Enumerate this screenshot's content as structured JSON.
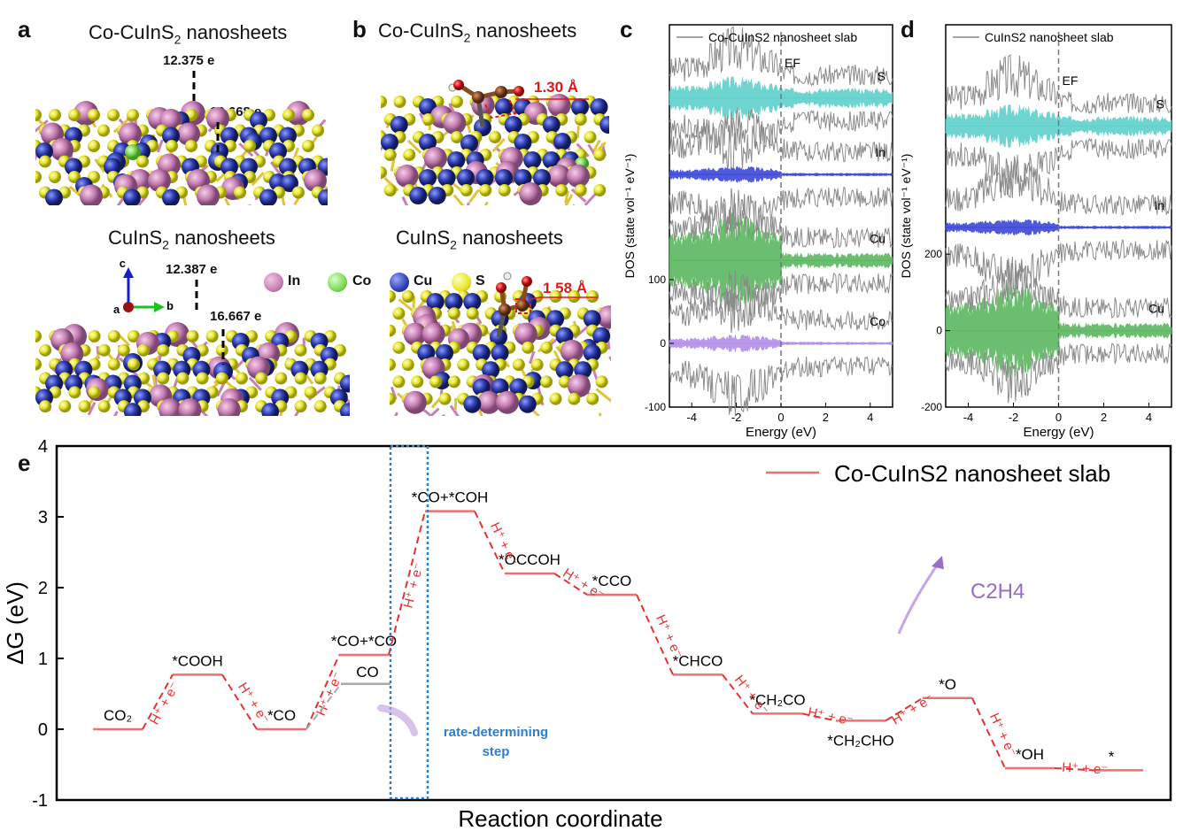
{
  "panels": {
    "a": {
      "label": "a",
      "top_title": "Co-CuInS",
      "top_title_sub": "2",
      "top_title_rest": " nanosheets",
      "top_charge1": "12.375 e",
      "top_charge2": "16.668 e",
      "bottom_title": "CuInS",
      "bottom_title_sub": "2",
      "bottom_title_rest": " nanosheets",
      "bottom_charge1": "12.387 e",
      "bottom_charge2": "16.667 e",
      "axes": {
        "c": "c",
        "a": "a",
        "b": "b"
      },
      "legend": [
        {
          "name": "In",
          "color": "#c77fb4"
        },
        {
          "name": "Co",
          "color": "#7ed957"
        },
        {
          "name": "Cu",
          "color": "#2f3fb0"
        },
        {
          "name": "S",
          "color": "#e7e52a"
        }
      ]
    },
    "b": {
      "label": "b",
      "top_title": "Co-CuInS",
      "top_title_sub": "2",
      "top_title_rest": " nanosheets",
      "top_bond": "1.30 Å",
      "bottom_title": "CuInS",
      "bottom_title_sub": "2",
      "bottom_title_rest": " nanosheets",
      "bottom_bond": "1.58 Å"
    },
    "c": {
      "label": "c",
      "legend": "Co-CuInS",
      "legend_sub": "2",
      "legend_rest": " nanosheet slab",
      "ef": "E",
      "ef_sub": "F"
    },
    "d": {
      "label": "d",
      "legend": "CuInS",
      "legend_sub": "2",
      "legend_rest": " nanosheet slab",
      "ef": "E",
      "ef_sub": "F"
    },
    "e": {
      "label": "e",
      "legend": "Co-CuInS",
      "legend_sub": "2",
      "legend_rest": " nanosheet slab",
      "product": "C",
      "product_sub1": "2",
      "product_mid": "H",
      "product_sub2": "4",
      "rds_line1": "rate-determining",
      "rds_line2": "step"
    }
  },
  "chart_data": [
    {
      "type": "area",
      "panel": "c",
      "xlabel": "Energy (eV)",
      "ylabel": "DOS (state vol⁻¹ eV⁻¹)",
      "xlim": [
        -5,
        5
      ],
      "ylim": [
        -100,
        500
      ],
      "x_ticks": [
        -4,
        -2,
        0,
        2,
        4
      ],
      "y_ticks": [
        -100,
        0,
        100
      ],
      "fermi_level": 0,
      "series": [
        {
          "name": "S",
          "offset": 385,
          "color": "#5fd0cc"
        },
        {
          "name": "In",
          "offset": 265,
          "color": "#3b48d8"
        },
        {
          "name": "Cu",
          "offset": 130,
          "color": "#5cb860"
        },
        {
          "name": "Co",
          "offset": 0,
          "color": "#b38ee8"
        }
      ],
      "legend": "Co-CuInS2 nanosheet slab"
    },
    {
      "type": "area",
      "panel": "d",
      "xlabel": "Energy (eV)",
      "ylabel": "DOS (state vol⁻¹ eV⁻¹)",
      "xlim": [
        -5,
        5
      ],
      "ylim": [
        -200,
        800
      ],
      "x_ticks": [
        -4,
        -2,
        0,
        2,
        4
      ],
      "y_ticks": [
        -200,
        0,
        200
      ],
      "fermi_level": 0,
      "series": [
        {
          "name": "S",
          "offset": 535,
          "color": "#5fd0cc"
        },
        {
          "name": "In",
          "offset": 270,
          "color": "#3b48d8"
        },
        {
          "name": "Cu",
          "offset": 0,
          "color": "#5cb860"
        }
      ],
      "legend": "CuInS2 nanosheet slab"
    },
    {
      "type": "line",
      "panel": "e",
      "xlabel": "Reaction coordinate",
      "ylabel": "ΔG (eV)",
      "ylim": [
        -1,
        4
      ],
      "y_ticks": [
        -1,
        0,
        1,
        2,
        3,
        4
      ],
      "series": [
        {
          "name": "Co-CuInS2 nanosheet slab",
          "color": "#f07070"
        }
      ],
      "steps": [
        {
          "label": "CO₂",
          "value": 0.0
        },
        {
          "label": "*COOH",
          "value": 0.77
        },
        {
          "label": "*CO",
          "value": 0.0
        },
        {
          "label": "*CO+*CO",
          "value": 1.05
        },
        {
          "label": "*CO+*COH",
          "value": 3.08
        },
        {
          "label": "*OCCOH",
          "value": 2.2
        },
        {
          "label": "*CCO",
          "value": 1.9
        },
        {
          "label": "*CHCO",
          "value": 0.77
        },
        {
          "label": "*CH₂CO",
          "value": 0.22
        },
        {
          "label": "*CH₂CHO",
          "value": 0.12
        },
        {
          "label": "*O",
          "value": 0.44
        },
        {
          "label": "*OH",
          "value": -0.55
        },
        {
          "label": "*",
          "value": -0.58
        }
      ],
      "side_step": {
        "label": "CO",
        "value": 0.64,
        "color": "#aaaaaa"
      },
      "transition_labels": [
        "H⁺ + e⁻",
        "H⁺ + e⁻",
        "H⁺ + e⁻",
        "H⁺ + e⁻",
        "H⁺ + e⁻",
        "H⁺ + e⁻",
        "H⁺ + e⁻",
        "H⁺ + e⁻",
        "H⁺ + e⁻",
        "H⁺ + e⁻",
        "H⁺ + e⁻",
        "H⁺ + e⁻"
      ]
    }
  ]
}
